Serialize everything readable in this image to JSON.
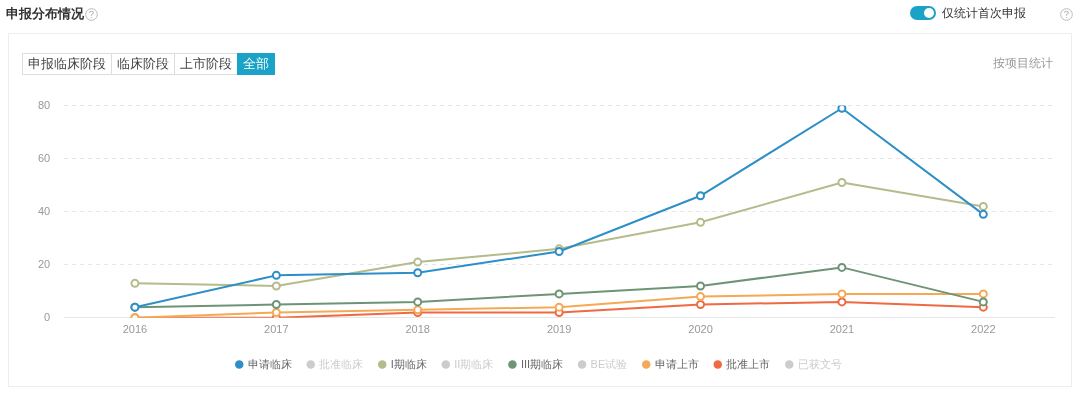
{
  "chart_data": {
    "type": "line",
    "title": "申报分布情况",
    "annotations": [
      "仅统计首次申报",
      "申报临床阶段",
      "临床阶段",
      "上市阶段",
      "全部",
      "按项目统计"
    ],
    "categories": [
      "2016",
      "2017",
      "2018",
      "2019",
      "2020",
      "2021",
      "2022"
    ],
    "series": [
      {
        "name": "申请临床",
        "color": "#2e8fc8",
        "values": [
          4,
          16,
          17,
          25,
          46,
          79,
          39
        ]
      },
      {
        "name": "批准临床",
        "color": "#cccccc",
        "values": [
          null,
          null,
          null,
          null,
          null,
          null,
          null
        ]
      },
      {
        "name": "I期临床",
        "color": "#b5bb8a",
        "values": [
          13,
          12,
          21,
          26,
          36,
          51,
          42
        ]
      },
      {
        "name": "II期临床",
        "color": "#cccccc",
        "values": [
          null,
          null,
          null,
          null,
          null,
          null,
          null
        ]
      },
      {
        "name": "III期临床",
        "color": "#6e9477",
        "values": [
          4,
          5,
          6,
          9,
          12,
          19,
          6
        ]
      },
      {
        "name": "BE试验",
        "color": "#cccccc",
        "values": [
          null,
          null,
          null,
          null,
          null,
          null,
          null
        ]
      },
      {
        "name": "申请上市",
        "color": "#f6a955",
        "values": [
          0,
          2,
          3,
          4,
          8,
          9,
          9
        ]
      },
      {
        "name": "批准上市",
        "color": "#ef6a43",
        "values": [
          0,
          0,
          2,
          2,
          5,
          6,
          4
        ]
      },
      {
        "name": "已获文号",
        "color": "#cccccc",
        "values": [
          null,
          null,
          null,
          null,
          null,
          null,
          null
        ]
      }
    ],
    "ylim": [
      0,
      80
    ],
    "yticks": [
      0,
      20,
      40,
      60,
      80
    ],
    "grid": "y",
    "legend": "bottom",
    "marker": "circle",
    "line_style": "solid"
  }
}
